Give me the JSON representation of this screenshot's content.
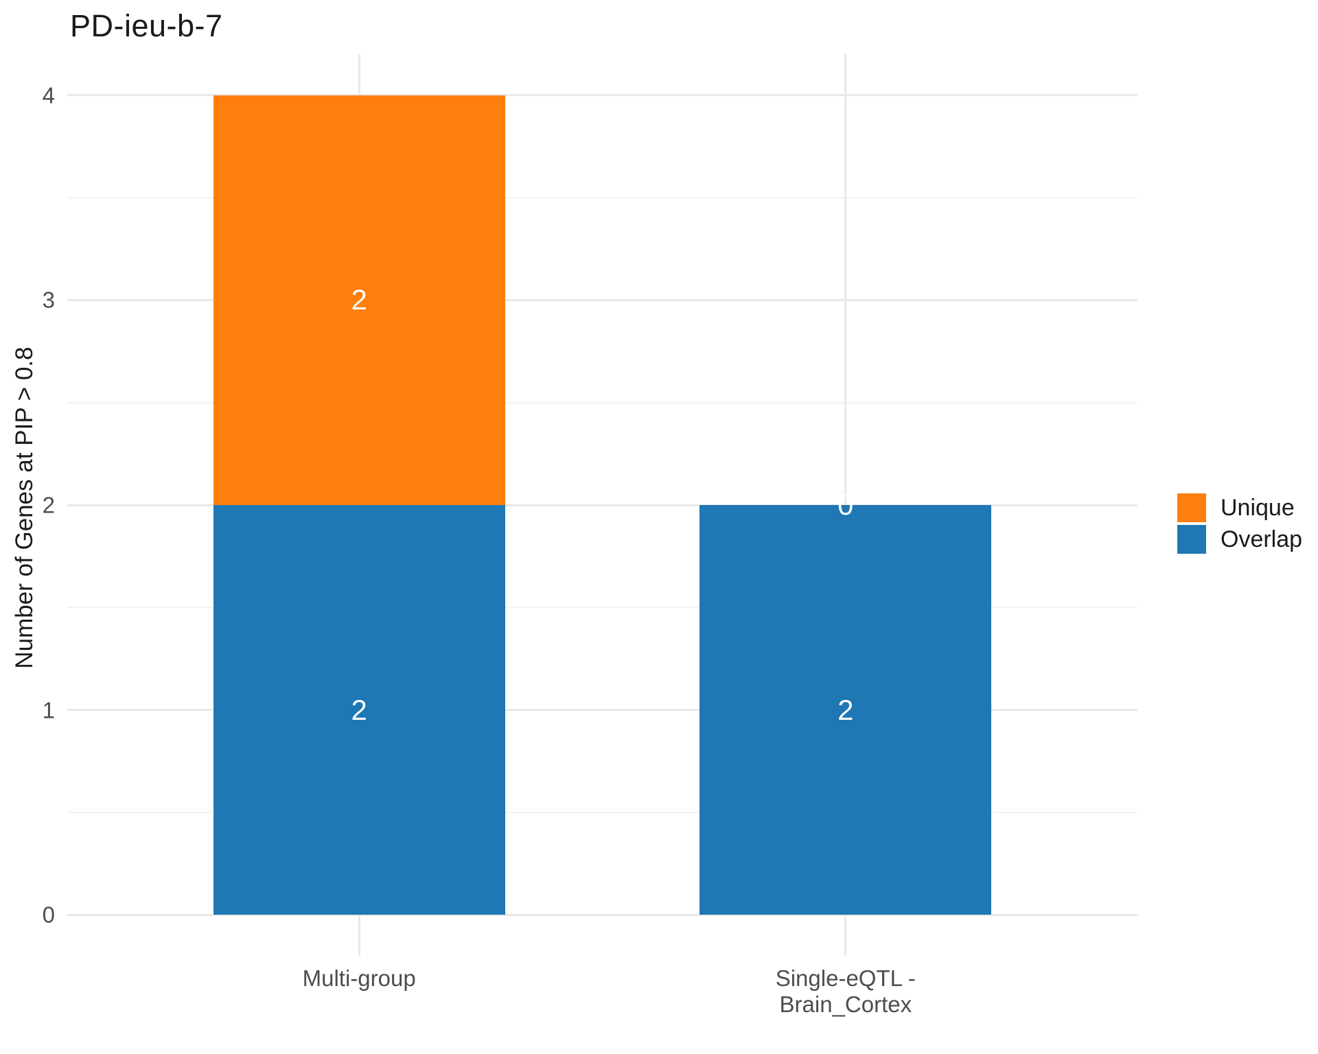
{
  "chart_data": {
    "type": "bar",
    "stacked": true,
    "title": "PD-ieu-b-7",
    "ylabel": "Number of Genes at PIP > 0.8",
    "xlabel": "",
    "categories": [
      "Multi-group",
      "Single-eQTL -\nBrain_Cortex"
    ],
    "x_positions": [
      1,
      2
    ],
    "xlim": [
      0.4,
      2.6
    ],
    "bar_width": 0.6,
    "series": [
      {
        "name": "Overlap",
        "color": "#1F77B4",
        "values": [
          2,
          2
        ]
      },
      {
        "name": "Unique",
        "color": "#FF7F0E",
        "values": [
          2,
          0
        ]
      }
    ],
    "segment_label_color": "#FFFFFF",
    "yticks": [
      0,
      1,
      2,
      3,
      4
    ],
    "ylim": [
      0,
      4
    ],
    "y_expand": 0.05,
    "grid": {
      "show": true,
      "major_color": "#E9E9E9",
      "minor_color": "#F2F2F2"
    },
    "axis_text_color": "#4d4d4d",
    "legend": {
      "position": "right",
      "entries": [
        {
          "label": "Unique",
          "color": "#FF7F0E"
        },
        {
          "label": "Overlap",
          "color": "#1F77B4"
        }
      ]
    }
  }
}
